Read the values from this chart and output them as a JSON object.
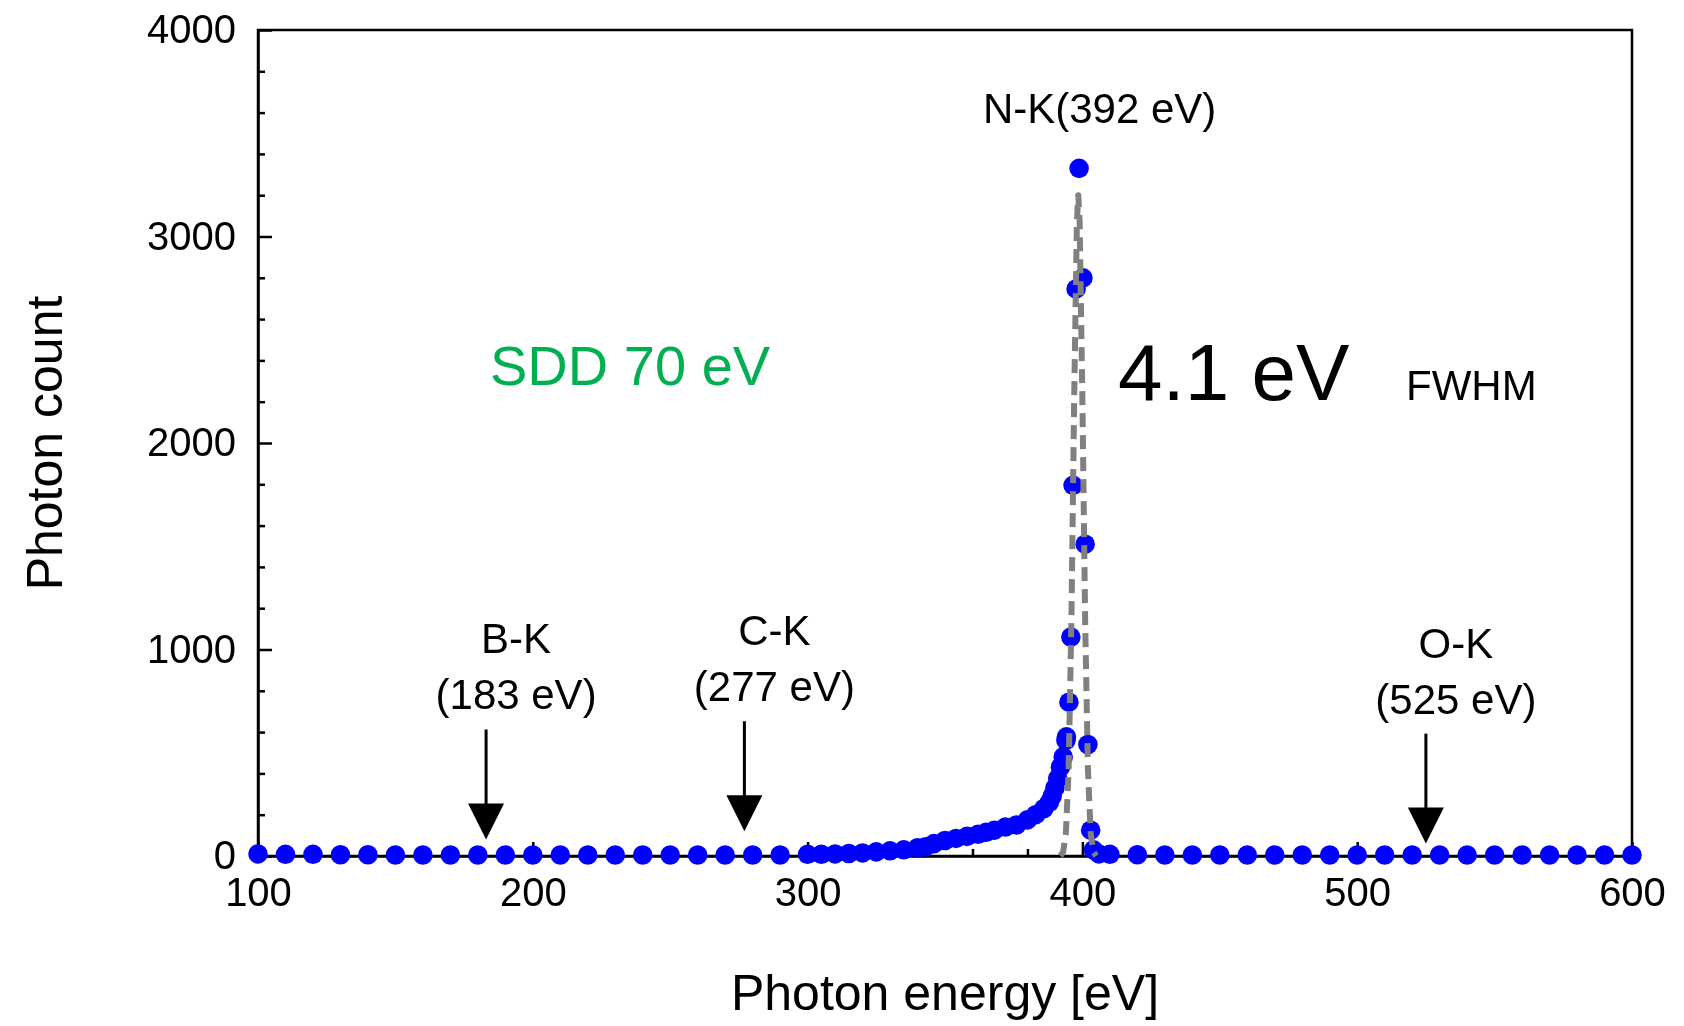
{
  "chart_data": {
    "type": "scatter",
    "xlabel": "Photon energy [eV]",
    "ylabel": "Photon count",
    "xlim": [
      100,
      600
    ],
    "ylim": [
      0,
      4000
    ],
    "xticks": [
      100,
      {
        "value": 120,
        "label": null
      },
      {
        "value": 140,
        "label": null
      },
      {
        "value": 160,
        "label": null
      },
      {
        "value": 180,
        "label": null
      },
      200,
      {
        "value": 220,
        "label": null
      },
      {
        "value": 240,
        "label": null
      },
      {
        "value": 260,
        "label": null
      },
      {
        "value": 280,
        "label": null
      },
      300,
      {
        "value": 320,
        "label": null
      },
      {
        "value": 340,
        "label": null
      },
      {
        "value": 360,
        "label": null
      },
      {
        "value": 380,
        "label": null
      },
      400,
      {
        "value": 420,
        "label": null
      },
      {
        "value": 440,
        "label": null
      },
      {
        "value": 460,
        "label": null
      },
      {
        "value": 480,
        "label": null
      },
      500,
      {
        "value": 520,
        "label": null
      },
      {
        "value": 540,
        "label": null
      },
      {
        "value": 560,
        "label": null
      },
      {
        "value": 580,
        "label": null
      },
      600
    ],
    "yticks": [
      0,
      {
        "value": 200,
        "label": null
      },
      {
        "value": 400,
        "label": null
      },
      {
        "value": 600,
        "label": null
      },
      {
        "value": 800,
        "label": null
      },
      1000,
      {
        "value": 1200,
        "label": null
      },
      {
        "value": 1400,
        "label": null
      },
      {
        "value": 1600,
        "label": null
      },
      {
        "value": 1800,
        "label": null
      },
      2000,
      {
        "value": 2200,
        "label": null
      },
      {
        "value": 2400,
        "label": null
      },
      {
        "value": 2600,
        "label": null
      },
      {
        "value": 2800,
        "label": null
      },
      3000,
      {
        "value": 3200,
        "label": null
      },
      {
        "value": 3400,
        "label": null
      },
      {
        "value": 3600,
        "label": null
      },
      {
        "value": 3800,
        "label": null
      },
      4000
    ],
    "marker": "circle",
    "grid": false,
    "series": [
      {
        "color": "#0000ff",
        "x": [
          100,
          110,
          120,
          130,
          140,
          150,
          160,
          170,
          180,
          190,
          200,
          210,
          220,
          230,
          240,
          250,
          260,
          270,
          280,
          290,
          300,
          305,
          310,
          315,
          320,
          325,
          330,
          335,
          340,
          343,
          346,
          350,
          354,
          358,
          362,
          365,
          368,
          372,
          376,
          380,
          383,
          386,
          388,
          389,
          390,
          391,
          392,
          393,
          394,
          394.2,
          395.1,
          395.8,
          396.6,
          397.7,
          398.8,
          400.2,
          401,
          402,
          403,
          404,
          406,
          410,
          420,
          430,
          440,
          450,
          460,
          470,
          480,
          490,
          500,
          510,
          520,
          530,
          540,
          550,
          560,
          570,
          580,
          590,
          600
        ],
        "values": [
          10,
          8,
          8,
          6,
          6,
          5,
          5,
          5,
          5,
          5,
          5,
          5,
          5,
          5,
          5,
          5,
          5,
          5,
          5,
          5,
          8,
          8,
          10,
          12,
          15,
          20,
          25,
          30,
          40,
          45,
          60,
          75,
          85,
          95,
          105,
          115,
          125,
          140,
          150,
          175,
          200,
          230,
          260,
          290,
          330,
          375,
          430,
          480,
          560,
          577,
          745,
          1060,
          1795,
          2746,
          3330,
          2800,
          1510,
          540,
          125,
          30,
          10,
          8,
          6,
          5,
          5,
          5,
          5,
          5,
          5,
          5,
          5,
          5,
          5,
          5,
          5,
          5,
          5,
          5,
          5,
          5,
          5
        ]
      },
      {
        "type": "line",
        "color": "#808080",
        "line_style": "dashed",
        "marker": "none",
        "x": [
          392,
          393,
          394,
          395,
          396,
          397,
          398,
          398.5,
          399,
          400,
          401,
          402,
          403,
          404,
          405
        ],
        "values": [
          0,
          20,
          113,
          424,
          1141,
          2210,
          3070,
          3200,
          3070,
          2210,
          1141,
          424,
          113,
          20,
          0
        ]
      }
    ],
    "annotations": [
      "B-K\n(183 eV)",
      "C-K\n(277 eV)",
      "O-K\n(525 eV)",
      {
        "text": "N-K(392 eV)",
        "x": 399,
        "y": 3330
      },
      "SDD 70 eV",
      "4.1 eV",
      "FWHM"
    ]
  }
}
